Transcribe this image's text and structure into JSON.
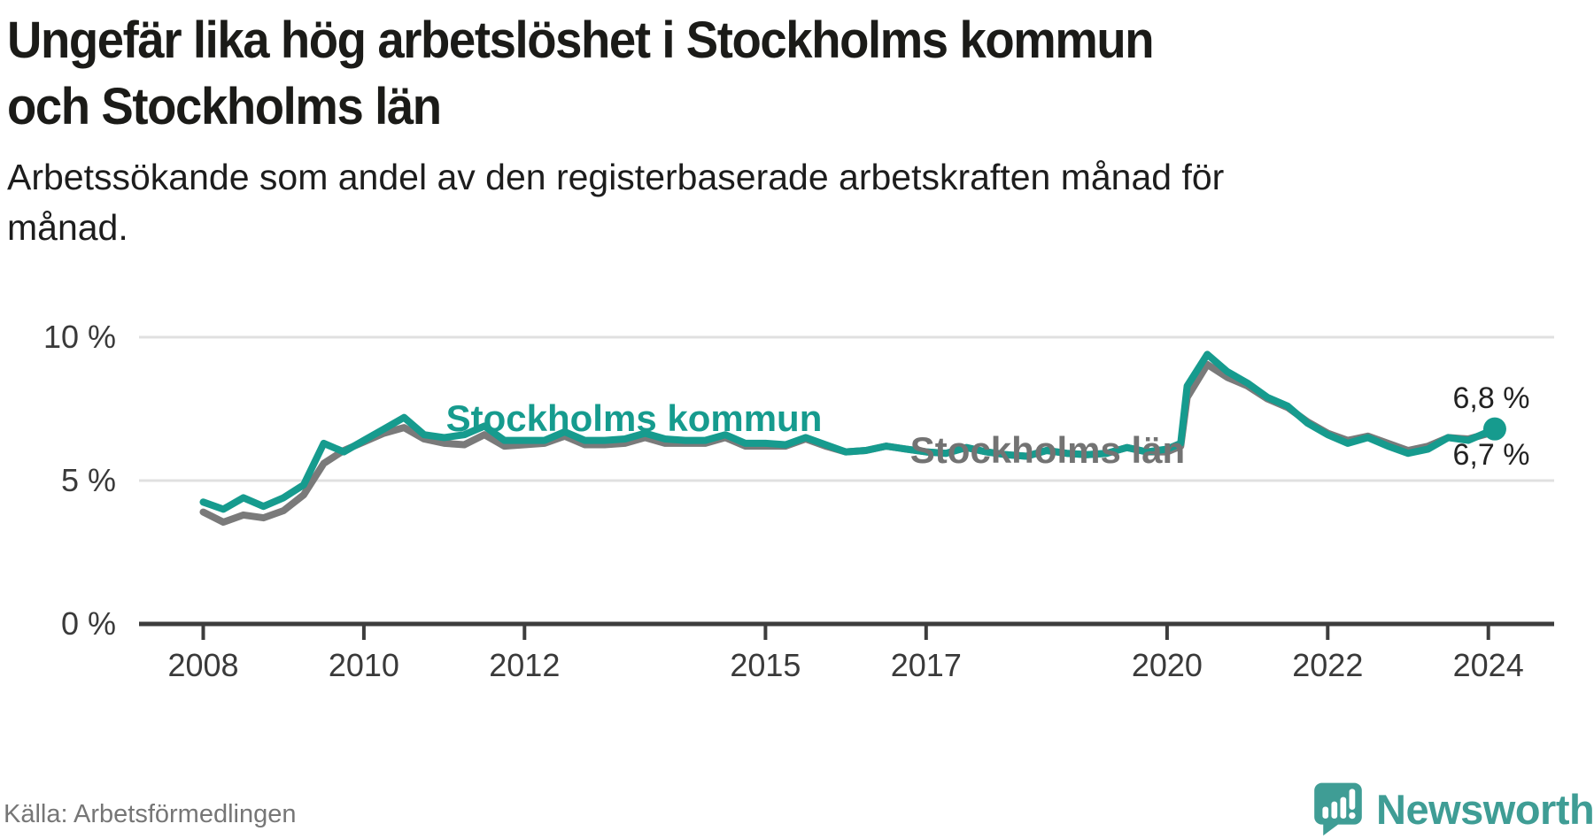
{
  "chart_data": {
    "type": "line",
    "title": "Ungefär lika hög arbetslöshet i Stockholms kommun och Stockholms län",
    "title_lines": [
      "Ungefär lika hög arbetslöshet i Stockholms kommun",
      "och Stockholms län"
    ],
    "subtitle": "Arbetssökande som andel av den registerbaserade arbetskraften månad för månad.",
    "subtitle_lines": [
      "Arbetssökande som andel av den registerbaserade arbetskraften månad för",
      "månad."
    ],
    "unit": "%",
    "grid": "horizontal",
    "legend_position": "inline-labels-on-lines",
    "xlim": [
      2007.2,
      2024.8
    ],
    "ylim": [
      0,
      10.5
    ],
    "x_ticks": [
      "2008",
      "2010",
      "2012",
      "2015",
      "2017",
      "2020",
      "2022",
      "2024"
    ],
    "x_tick_years": [
      2008,
      2010,
      2012,
      2015,
      2017,
      2020,
      2022,
      2024
    ],
    "y_ticks": [
      {
        "value": 10,
        "label": "10 %"
      },
      {
        "value": 5,
        "label": "5 %"
      },
      {
        "value": 0,
        "label": "0 %"
      }
    ],
    "x": [
      2008,
      2008.25,
      2008.5,
      2008.75,
      2009,
      2009.25,
      2009.5,
      2009.75,
      2010,
      2010.25,
      2010.5,
      2010.75,
      2011,
      2011.25,
      2011.5,
      2011.75,
      2012,
      2012.25,
      2012.5,
      2012.75,
      2013,
      2013.25,
      2013.5,
      2013.75,
      2014,
      2014.25,
      2014.5,
      2014.75,
      2015,
      2015.25,
      2015.5,
      2015.75,
      2016,
      2016.25,
      2016.5,
      2016.75,
      2017,
      2017.25,
      2017.5,
      2017.75,
      2018,
      2018.25,
      2018.5,
      2018.75,
      2019,
      2019.25,
      2019.5,
      2019.75,
      2020,
      2020.17,
      2020.25,
      2020.5,
      2020.75,
      2021,
      2021.25,
      2021.5,
      2021.75,
      2022,
      2022.25,
      2022.5,
      2022.75,
      2023,
      2023.25,
      2023.5,
      2023.75,
      2024.08
    ],
    "series": [
      {
        "name": "Stockholms kommun",
        "color": "#169b8e",
        "end_value": 6.8,
        "end_label": "6,8 %",
        "values": [
          4.25,
          4.0,
          4.4,
          4.1,
          4.4,
          4.85,
          6.3,
          6.0,
          6.4,
          6.8,
          7.2,
          6.6,
          6.5,
          6.6,
          6.9,
          6.4,
          6.4,
          6.4,
          6.7,
          6.4,
          6.4,
          6.45,
          6.65,
          6.45,
          6.4,
          6.4,
          6.6,
          6.3,
          6.3,
          6.25,
          6.5,
          6.25,
          6.0,
          6.05,
          6.2,
          6.1,
          6.0,
          5.95,
          6.15,
          6.0,
          5.9,
          5.85,
          6.05,
          5.95,
          5.9,
          5.95,
          6.15,
          6.0,
          6.1,
          6.3,
          8.3,
          9.4,
          8.8,
          8.4,
          7.9,
          7.6,
          7.0,
          6.6,
          6.3,
          6.5,
          6.2,
          5.95,
          6.1,
          6.5,
          6.4,
          6.8
        ]
      },
      {
        "name": "Stockholms län",
        "color": "#7a7a7a",
        "label_color": "#737373",
        "end_value": 6.7,
        "end_label": "6,7 %",
        "values": [
          3.9,
          3.55,
          3.8,
          3.7,
          3.95,
          4.5,
          5.6,
          6.05,
          6.35,
          6.65,
          6.85,
          6.45,
          6.3,
          6.25,
          6.6,
          6.2,
          6.25,
          6.3,
          6.55,
          6.25,
          6.25,
          6.3,
          6.5,
          6.3,
          6.3,
          6.3,
          6.5,
          6.2,
          6.2,
          6.2,
          6.45,
          6.2,
          6.0,
          6.05,
          6.2,
          6.1,
          6.0,
          5.95,
          6.15,
          6.0,
          5.9,
          5.85,
          6.05,
          5.95,
          5.9,
          5.95,
          6.15,
          6.0,
          6.0,
          6.2,
          7.9,
          9.05,
          8.6,
          8.3,
          7.85,
          7.55,
          7.05,
          6.65,
          6.4,
          6.55,
          6.3,
          6.05,
          6.2,
          6.5,
          6.45,
          6.7
        ]
      }
    ]
  },
  "colors": {
    "kommun_teal": "#169b8e",
    "lan_gray": "#7a7a7a",
    "gridline": "#e0e0e0",
    "axis": "#3d3d3d",
    "brand_teal": "#3f9d95"
  },
  "footer": {
    "source": "Källa: Arbetsförmedlingen",
    "brand": "Newsworthy"
  }
}
